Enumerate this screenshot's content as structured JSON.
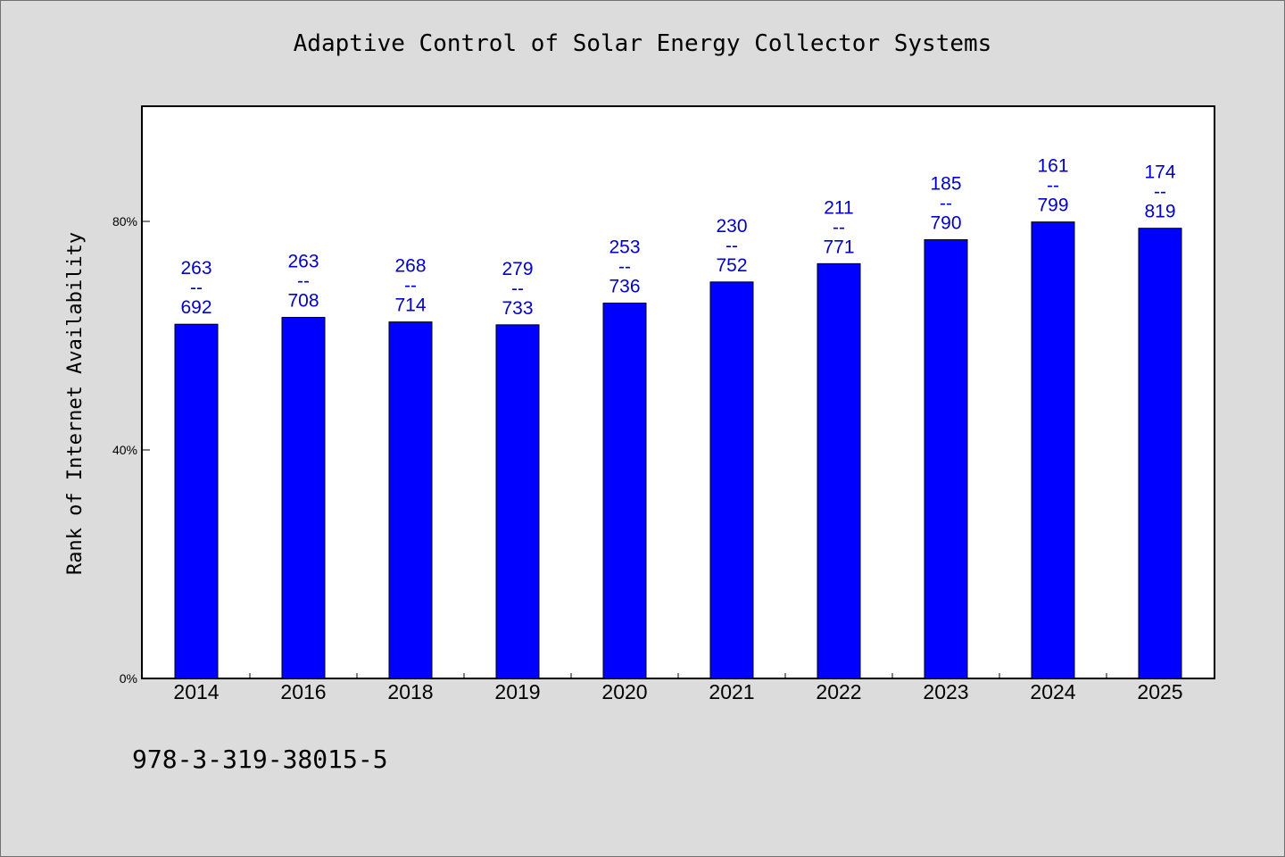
{
  "chart_data": {
    "type": "bar",
    "title": "Adaptive Control of Solar Energy Collector Systems",
    "xlabel": "",
    "ylabel": "Rank of Internet Availability",
    "categories": [
      "2014",
      "2016",
      "2018",
      "2019",
      "2020",
      "2021",
      "2022",
      "2023",
      "2024",
      "2025"
    ],
    "values": [
      0.62,
      0.632,
      0.624,
      0.619,
      0.657,
      0.694,
      0.726,
      0.768,
      0.799,
      0.788
    ],
    "bar_labels": [
      [
        "263",
        "--",
        "692"
      ],
      [
        "263",
        "--",
        "708"
      ],
      [
        "268",
        "--",
        "714"
      ],
      [
        "279",
        "--",
        "733"
      ],
      [
        "253",
        "--",
        "736"
      ],
      [
        "230",
        "--",
        "752"
      ],
      [
        "211",
        "--",
        "771"
      ],
      [
        "185",
        "--",
        "790"
      ],
      [
        "161",
        "--",
        "799"
      ],
      [
        "174",
        "--",
        "819"
      ]
    ],
    "yticks": [
      0,
      0.4,
      0.8
    ],
    "ytick_labels": [
      "0%",
      "40%",
      "80%"
    ],
    "ylim": [
      0,
      1.0
    ],
    "grid": false,
    "bar_color": "#0000ff",
    "label_color": "#0000c8"
  },
  "footer": {
    "isbn": "978-3-319-38015-5"
  }
}
